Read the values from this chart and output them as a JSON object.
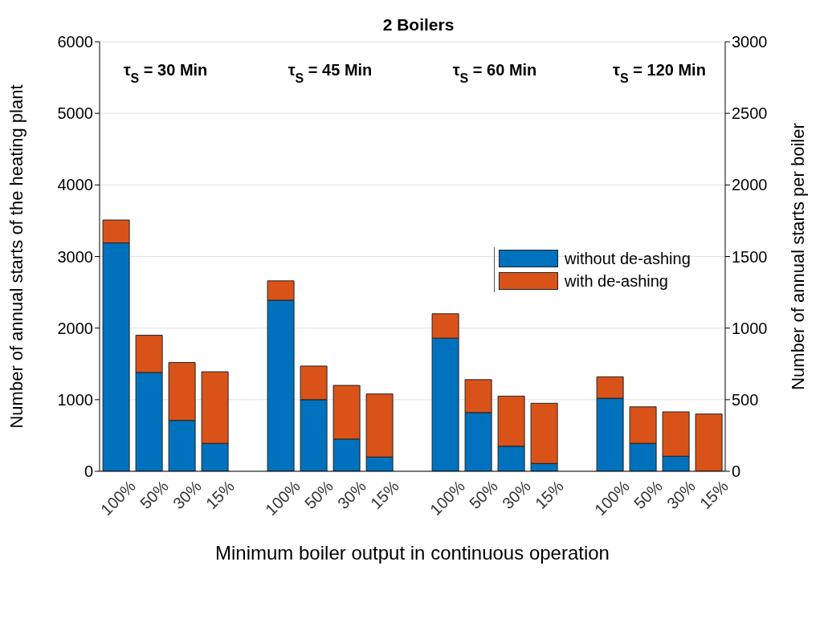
{
  "chart_data": {
    "type": "bar",
    "title": "2 Boilers",
    "xlabel": "Minimum boiler output in continuous operation",
    "ylabel": "Number of annual starts of the heating plant",
    "y2label": "Number of annual starts per boiler",
    "categories": [
      "100%",
      "50%",
      "30%",
      "15%",
      null,
      "100%",
      "50%",
      "30%",
      "15%",
      null,
      "100%",
      "50%",
      "30%",
      "15%",
      null,
      "100%",
      "50%",
      "30%",
      "15%"
    ],
    "stacked": true,
    "series": [
      {
        "name": "without de-ashing",
        "color": "#0072bd",
        "values": [
          3190,
          1380,
          710,
          390,
          null,
          2390,
          1000,
          450,
          200,
          null,
          1860,
          820,
          350,
          110,
          null,
          1020,
          390,
          210,
          0
        ]
      },
      {
        "name": "with de-ashing",
        "color": "#d95319",
        "values": [
          320,
          520,
          810,
          1000,
          null,
          270,
          470,
          750,
          880,
          null,
          340,
          460,
          700,
          840,
          null,
          300,
          510,
          620,
          800
        ]
      }
    ],
    "ylim": [
      0,
      6000
    ],
    "yticks": [
      0,
      1000,
      2000,
      3000,
      4000,
      5000,
      6000
    ],
    "y2lim": [
      0,
      3000
    ],
    "y2ticks": [
      0,
      500,
      1000,
      1500,
      2000,
      2500,
      3000
    ],
    "grid": "y",
    "legend": "right",
    "annotations": [
      "τ$_{S}$ = 30 Min",
      "τ$_{S}$ = 45 Min",
      "τ$_{S}$ = 60 Min",
      "τ$_{S}$ = 120 Min"
    ]
  }
}
